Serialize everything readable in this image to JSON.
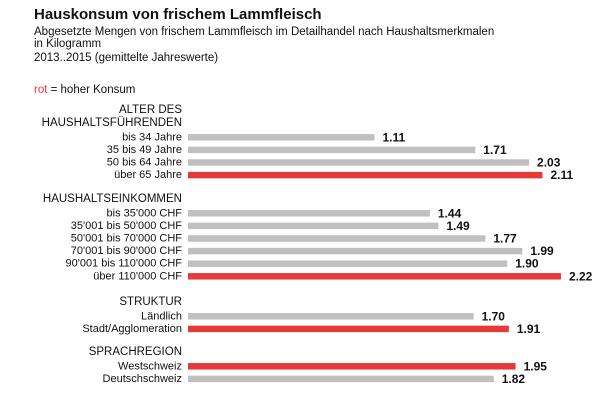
{
  "header": {
    "title": "Hauskonsum von frischem Lammfleisch",
    "subtitle_lines": [
      "Abgesetzte Mengen von frischem Lammfleisch im Detailhandel  nach Haushaltsmerkmalen",
      "in Kilogramm",
      "2013..2015 (gemittelte Jahreswerte)"
    ],
    "legend_note": {
      "red_word": "rot",
      "rest": " = hoher Konsum"
    }
  },
  "colors": {
    "normal": "#c0c0c0",
    "high": "#e8393a"
  },
  "chart_data": {
    "type": "bar",
    "orientation": "horizontal",
    "title": "Hauskonsum von frischem Lammfleisch",
    "unit": "Kilogramm",
    "xlim": [
      0,
      2.4
    ],
    "groups": [
      {
        "heading": [
          "ALTER DES",
          "HAUSHALTSFÜHRENDEN"
        ],
        "items": [
          {
            "label": "bis 34 Jahre",
            "value": 1.11,
            "value_label": "1.11",
            "high": false
          },
          {
            "label": "35 bis 49 Jahre",
            "value": 1.71,
            "value_label": "1.71",
            "high": false
          },
          {
            "label": "50 bis 64 Jahre",
            "value": 2.03,
            "value_label": "2.03",
            "high": false
          },
          {
            "label": "über 65 Jahre",
            "value": 2.11,
            "value_label": "2.11",
            "high": true
          }
        ]
      },
      {
        "heading": [
          "HAUSHALTSEINKOMMEN"
        ],
        "items": [
          {
            "label": "bis 35'000 CHF",
            "value": 1.44,
            "value_label": "1.44",
            "high": false
          },
          {
            "label": "35'001 bis 50'000 CHF",
            "value": 1.49,
            "value_label": "1.49",
            "high": false
          },
          {
            "label": "50'001 bis 70'000 CHF",
            "value": 1.77,
            "value_label": "1.77",
            "high": false
          },
          {
            "label": "70'001 bis 90'000 CHF",
            "value": 1.99,
            "value_label": "1.99",
            "high": false
          },
          {
            "label": "90'001 bis 110'000 CHF",
            "value": 1.9,
            "value_label": "1.90",
            "high": false
          },
          {
            "label": "über 110'000 CHF",
            "value": 2.22,
            "value_label": "2.22",
            "high": true
          }
        ]
      },
      {
        "heading": [
          "STRUKTUR"
        ],
        "items": [
          {
            "label": "Ländlich",
            "value": 1.7,
            "value_label": "1.70",
            "high": false
          },
          {
            "label": "Stadt/Agglomeration",
            "value": 1.91,
            "value_label": "1.91",
            "high": true
          }
        ]
      },
      {
        "heading": [
          "SPRACHREGION"
        ],
        "items": [
          {
            "label": "Westschweiz",
            "value": 1.95,
            "value_label": "1.95",
            "high": true
          },
          {
            "label": "Deutschschweiz",
            "value": 1.82,
            "value_label": "1.82",
            "high": false
          }
        ]
      }
    ]
  }
}
